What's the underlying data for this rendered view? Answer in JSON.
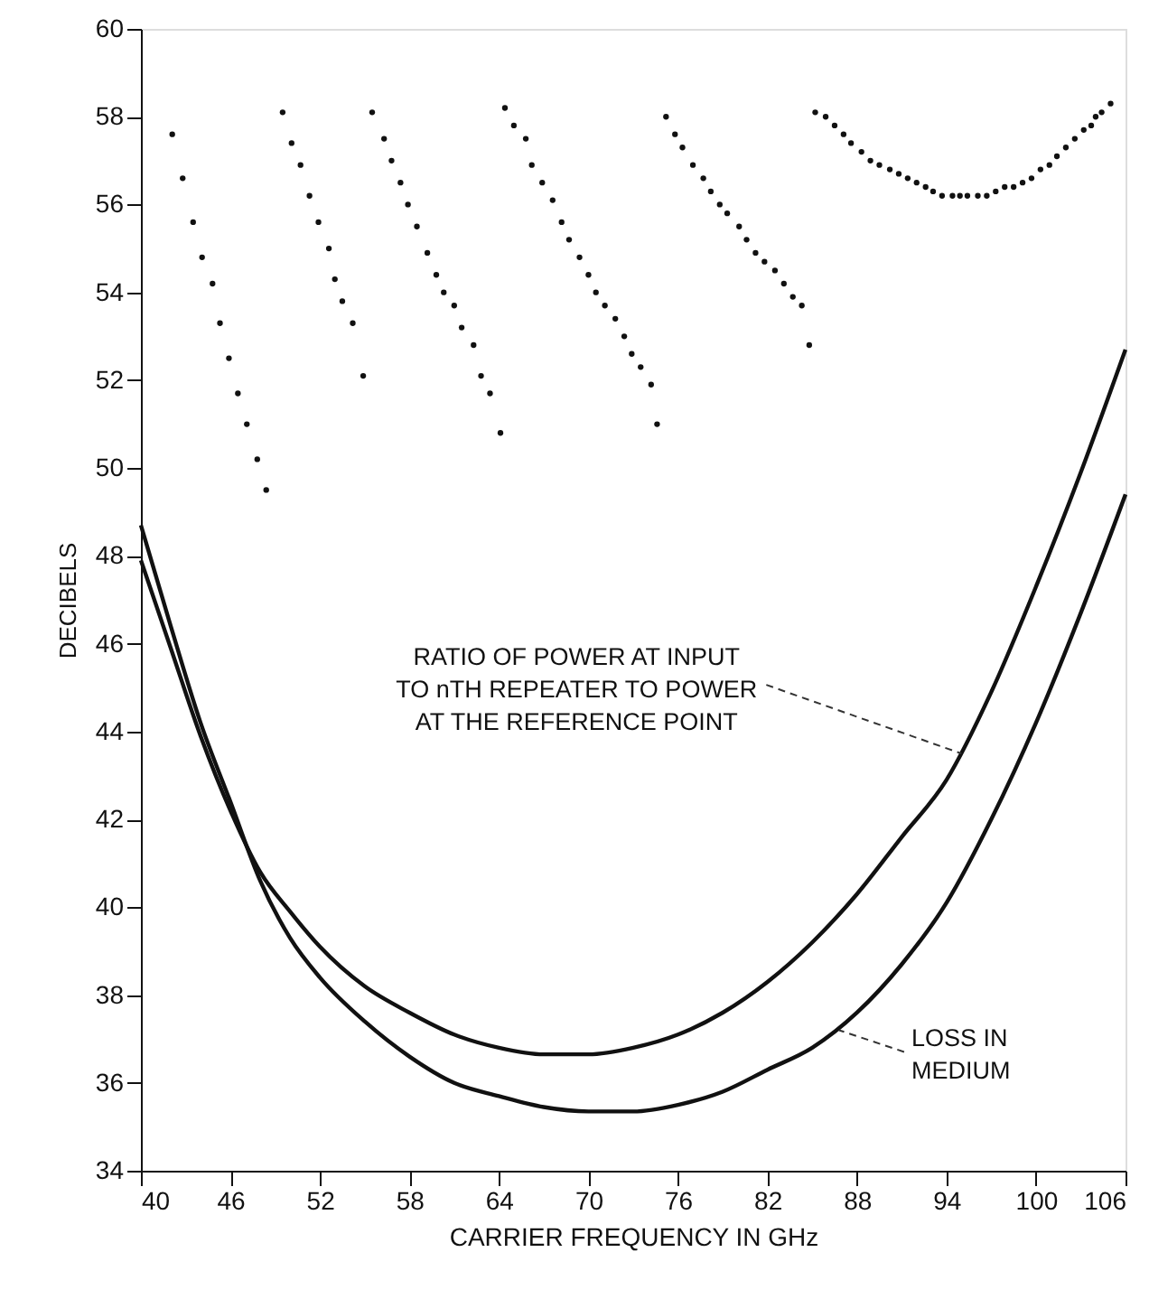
{
  "chart_data": {
    "type": "scatter",
    "xlabel": "CARRIER FREQUENCY IN GHz",
    "ylabel": "DECIBELS",
    "xlim": [
      40,
      106
    ],
    "xticks": [
      40,
      46,
      52,
      58,
      64,
      70,
      76,
      82,
      88,
      94,
      100,
      106
    ],
    "ylim": [
      34,
      60
    ],
    "yticks": [
      34,
      36,
      38,
      40,
      42,
      44,
      46,
      48,
      50,
      52,
      54,
      56,
      58,
      60
    ],
    "grid": false,
    "series": [
      {
        "marker": "circle",
        "color": "#111111",
        "x": [
          42.1,
          42.8,
          43.5,
          44.1,
          44.8,
          45.3,
          45.9,
          46.5,
          47.1,
          47.8,
          48.4,
          49.5,
          50.1,
          50.7,
          51.3,
          51.9,
          52.6,
          53.0,
          53.5,
          54.2,
          54.9,
          55.5,
          56.3,
          56.8,
          57.4,
          57.9,
          58.5,
          59.2,
          59.8,
          60.3,
          61.0,
          61.5,
          62.3,
          62.8,
          63.4,
          64.1,
          64.4,
          65.0,
          65.8,
          66.2,
          66.9,
          67.6,
          68.2,
          68.7,
          69.4,
          70.0,
          70.5,
          71.1,
          71.8,
          72.4,
          72.9,
          73.5,
          74.2,
          74.6,
          75.2,
          75.8,
          76.3,
          77.0,
          77.7,
          78.2,
          78.8,
          79.3,
          80.1,
          80.6,
          81.2,
          81.8,
          82.5,
          83.1,
          83.7,
          84.3,
          84.8,
          85.2,
          85.9,
          86.5,
          87.1,
          87.6,
          88.3,
          88.9,
          89.5,
          90.2,
          90.8,
          91.4,
          92.0,
          92.6,
          93.1,
          93.7,
          94.4,
          94.9,
          95.4,
          96.1,
          96.7,
          97.3,
          97.9,
          98.5,
          99.1,
          99.7,
          100.3,
          100.9,
          101.4,
          102.0,
          102.6,
          103.2,
          103.7,
          104.0,
          104.4,
          105.0
        ],
        "values": [
          57.6,
          56.6,
          55.6,
          54.8,
          54.2,
          53.3,
          52.5,
          51.7,
          51.0,
          50.2,
          49.5,
          58.1,
          57.4,
          56.9,
          56.2,
          55.6,
          55.0,
          54.3,
          53.8,
          53.3,
          52.1,
          58.1,
          57.5,
          57.0,
          56.5,
          56.0,
          55.5,
          54.9,
          54.4,
          54.0,
          53.7,
          53.2,
          52.8,
          52.1,
          51.7,
          50.8,
          58.2,
          57.8,
          57.5,
          56.9,
          56.5,
          56.1,
          55.6,
          55.2,
          54.8,
          54.4,
          54.0,
          53.7,
          53.4,
          53.0,
          52.6,
          52.3,
          51.9,
          51.0,
          58.0,
          57.6,
          57.3,
          56.9,
          56.6,
          56.3,
          56.0,
          55.8,
          55.5,
          55.2,
          54.9,
          54.7,
          54.5,
          54.2,
          53.9,
          53.7,
          52.8,
          58.1,
          58.0,
          57.8,
          57.6,
          57.4,
          57.2,
          57.0,
          56.9,
          56.8,
          56.7,
          56.6,
          56.5,
          56.4,
          56.3,
          56.2,
          56.2,
          56.2,
          56.2,
          56.2,
          56.2,
          56.3,
          56.4,
          56.4,
          56.5,
          56.6,
          56.8,
          56.9,
          57.1,
          57.3,
          57.5,
          57.7,
          57.8,
          58.0,
          58.1,
          58.3
        ]
      },
      {
        "type": "line",
        "line_style": "solid",
        "color": "#111111",
        "x": [
          40,
          42,
          44,
          46,
          48,
          50,
          52,
          55,
          58,
          61,
          64,
          67,
          70,
          73,
          76,
          79,
          82,
          85,
          88,
          91,
          94,
          97,
          100,
          103,
          106
        ],
        "values": [
          47.9,
          45.9,
          43.9,
          42.2,
          40.8,
          39.9,
          39.1,
          38.2,
          37.6,
          37.1,
          36.8,
          36.65,
          36.65,
          36.8,
          37.1,
          37.6,
          38.3,
          39.2,
          40.3,
          41.6,
          42.9,
          44.9,
          47.3,
          49.9,
          52.7
        ]
      },
      {
        "type": "line",
        "line_style": "solid",
        "color": "#111111",
        "x": [
          40,
          42,
          44,
          46,
          48,
          50,
          52,
          55,
          58,
          61,
          64,
          67,
          70,
          73,
          76,
          79,
          82,
          85,
          88,
          91,
          94,
          97,
          100,
          103,
          106
        ],
        "values": [
          48.7,
          46.4,
          44.2,
          42.4,
          40.6,
          39.3,
          38.4,
          37.4,
          36.6,
          36.0,
          35.7,
          35.45,
          35.35,
          35.35,
          35.5,
          35.8,
          36.3,
          36.8,
          37.6,
          38.7,
          40.1,
          42.0,
          44.2,
          46.7,
          49.4
        ]
      }
    ],
    "annotations": [
      {
        "text": "RATIO OF POWER AT INPUT\nTO nTH REPEATER TO POWER\nAT THE REFERENCE POINT",
        "x": 95.0,
        "y": 43.5
      },
      {
        "text": "LOSS IN\nMEDIUM",
        "x": 86.8,
        "y": 37.2
      }
    ]
  }
}
